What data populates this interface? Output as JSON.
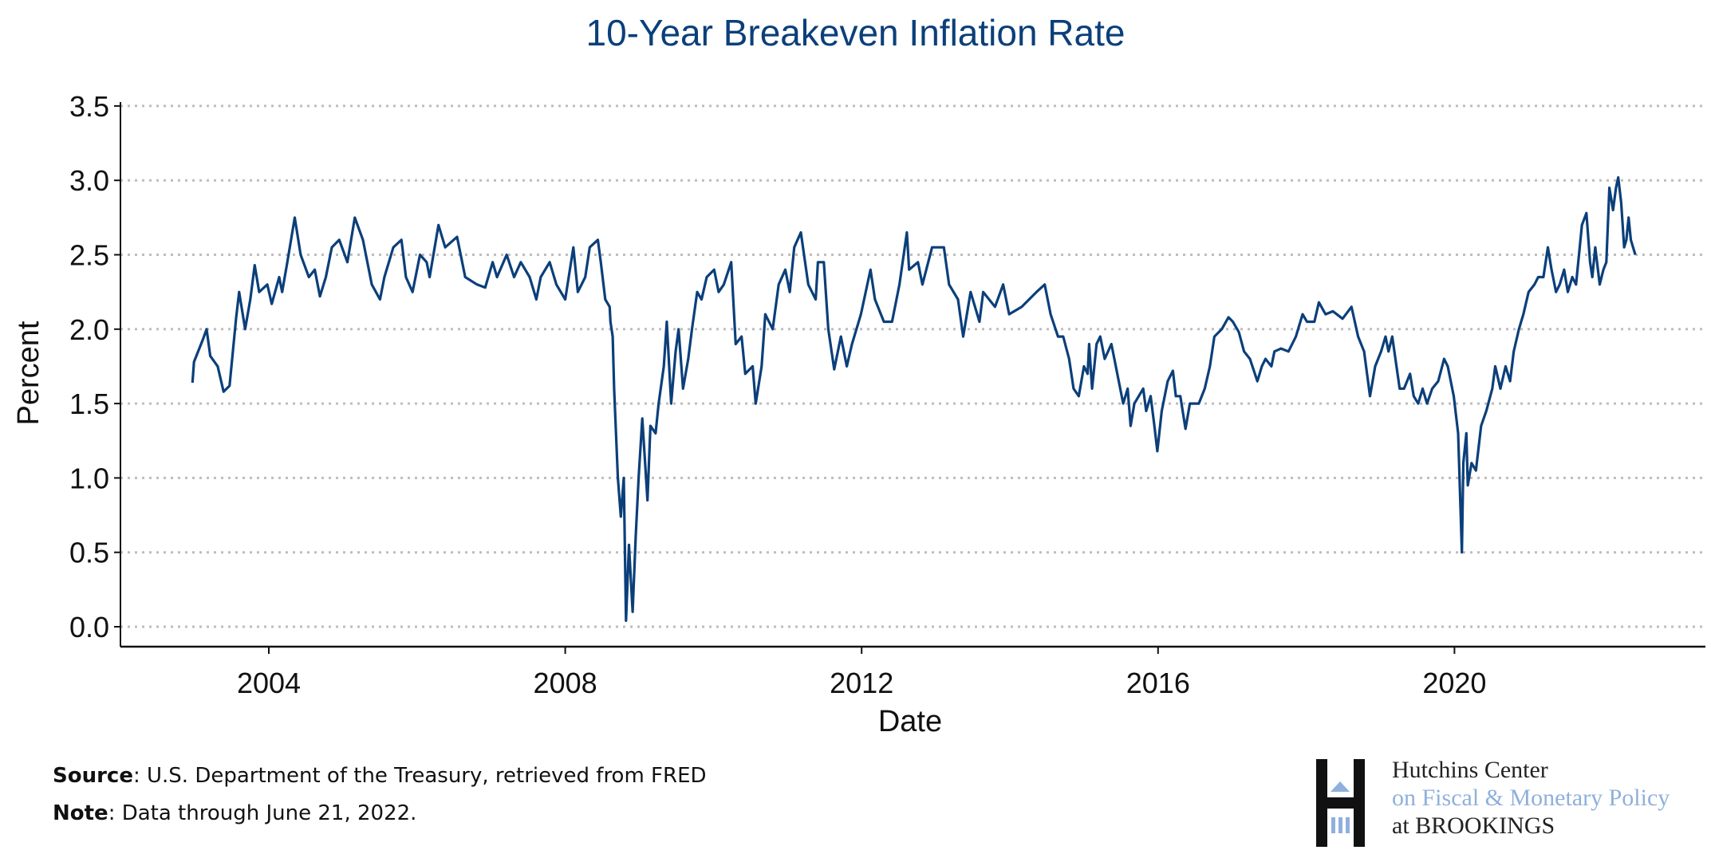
{
  "chart_data": {
    "type": "line",
    "title": "10-Year Breakeven Inflation Rate",
    "xlabel": "Date",
    "ylabel": "Percent",
    "xlim": [
      2002.0,
      2023.4
    ],
    "ylim": [
      -0.1,
      3.55
    ],
    "xticks": [
      2004,
      2008,
      2012,
      2016,
      2020
    ],
    "yticks": [
      "0.0",
      "0.5",
      "1.0",
      "1.5",
      "2.0",
      "2.5",
      "3.0",
      "3.5"
    ],
    "grid": "horizontal dotted",
    "line_color": "#0b3f7a",
    "series": [
      {
        "name": "10-Year Breakeven Inflation Rate",
        "points": [
          [
            2002.97,
            1.64
          ],
          [
            2002.99,
            1.78
          ],
          [
            2003.11,
            1.93
          ],
          [
            2003.16,
            2.0
          ],
          [
            2003.21,
            1.82
          ],
          [
            2003.31,
            1.75
          ],
          [
            2003.39,
            1.58
          ],
          [
            2003.47,
            1.62
          ],
          [
            2003.56,
            2.08
          ],
          [
            2003.6,
            2.25
          ],
          [
            2003.68,
            2.0
          ],
          [
            2003.75,
            2.2
          ],
          [
            2003.81,
            2.43
          ],
          [
            2003.87,
            2.25
          ],
          [
            2003.98,
            2.3
          ],
          [
            2004.04,
            2.17
          ],
          [
            2004.14,
            2.35
          ],
          [
            2004.18,
            2.25
          ],
          [
            2004.25,
            2.45
          ],
          [
            2004.35,
            2.75
          ],
          [
            2004.43,
            2.5
          ],
          [
            2004.54,
            2.35
          ],
          [
            2004.62,
            2.4
          ],
          [
            2004.69,
            2.22
          ],
          [
            2004.77,
            2.35
          ],
          [
            2004.85,
            2.55
          ],
          [
            2004.95,
            2.6
          ],
          [
            2005.06,
            2.45
          ],
          [
            2005.16,
            2.75
          ],
          [
            2005.27,
            2.6
          ],
          [
            2005.39,
            2.3
          ],
          [
            2005.5,
            2.2
          ],
          [
            2005.56,
            2.35
          ],
          [
            2005.68,
            2.55
          ],
          [
            2005.79,
            2.6
          ],
          [
            2005.85,
            2.35
          ],
          [
            2005.94,
            2.25
          ],
          [
            2006.04,
            2.5
          ],
          [
            2006.13,
            2.45
          ],
          [
            2006.17,
            2.35
          ],
          [
            2006.29,
            2.7
          ],
          [
            2006.38,
            2.55
          ],
          [
            2006.54,
            2.62
          ],
          [
            2006.65,
            2.35
          ],
          [
            2006.81,
            2.3
          ],
          [
            2006.92,
            2.28
          ],
          [
            2007.02,
            2.45
          ],
          [
            2007.08,
            2.35
          ],
          [
            2007.21,
            2.5
          ],
          [
            2007.31,
            2.35
          ],
          [
            2007.4,
            2.45
          ],
          [
            2007.52,
            2.35
          ],
          [
            2007.61,
            2.2
          ],
          [
            2007.67,
            2.35
          ],
          [
            2007.79,
            2.45
          ],
          [
            2007.88,
            2.3
          ],
          [
            2008.0,
            2.2
          ],
          [
            2008.11,
            2.55
          ],
          [
            2008.17,
            2.25
          ],
          [
            2008.27,
            2.35
          ],
          [
            2008.33,
            2.55
          ],
          [
            2008.44,
            2.6
          ],
          [
            2008.48,
            2.45
          ],
          [
            2008.54,
            2.2
          ],
          [
            2008.6,
            2.15
          ],
          [
            2008.61,
            2.05
          ],
          [
            2008.64,
            1.95
          ],
          [
            2008.66,
            1.6
          ],
          [
            2008.71,
            1.0
          ],
          [
            2008.75,
            0.74
          ],
          [
            2008.79,
            1.0
          ],
          [
            2008.82,
            0.04
          ],
          [
            2008.86,
            0.55
          ],
          [
            2008.91,
            0.1
          ],
          [
            2008.95,
            0.6
          ],
          [
            2008.99,
            1.0
          ],
          [
            2009.04,
            1.4
          ],
          [
            2009.11,
            0.85
          ],
          [
            2009.15,
            1.35
          ],
          [
            2009.22,
            1.3
          ],
          [
            2009.26,
            1.5
          ],
          [
            2009.33,
            1.75
          ],
          [
            2009.37,
            2.05
          ],
          [
            2009.43,
            1.5
          ],
          [
            2009.49,
            1.85
          ],
          [
            2009.53,
            2.0
          ],
          [
            2009.59,
            1.6
          ],
          [
            2009.66,
            1.8
          ],
          [
            2009.71,
            2.0
          ],
          [
            2009.78,
            2.25
          ],
          [
            2009.84,
            2.2
          ],
          [
            2009.91,
            2.35
          ],
          [
            2010.01,
            2.4
          ],
          [
            2010.07,
            2.25
          ],
          [
            2010.14,
            2.3
          ],
          [
            2010.24,
            2.45
          ],
          [
            2010.3,
            1.9
          ],
          [
            2010.38,
            1.95
          ],
          [
            2010.43,
            1.7
          ],
          [
            2010.53,
            1.75
          ],
          [
            2010.57,
            1.5
          ],
          [
            2010.65,
            1.75
          ],
          [
            2010.7,
            2.1
          ],
          [
            2010.8,
            2.0
          ],
          [
            2010.88,
            2.3
          ],
          [
            2010.97,
            2.4
          ],
          [
            2011.03,
            2.25
          ],
          [
            2011.09,
            2.55
          ],
          [
            2011.18,
            2.65
          ],
          [
            2011.28,
            2.3
          ],
          [
            2011.38,
            2.2
          ],
          [
            2011.41,
            2.45
          ],
          [
            2011.49,
            2.45
          ],
          [
            2011.55,
            2.0
          ],
          [
            2011.63,
            1.73
          ],
          [
            2011.72,
            1.95
          ],
          [
            2011.8,
            1.75
          ],
          [
            2011.87,
            1.9
          ],
          [
            2011.99,
            2.1
          ],
          [
            2012.12,
            2.4
          ],
          [
            2012.18,
            2.2
          ],
          [
            2012.3,
            2.05
          ],
          [
            2012.41,
            2.05
          ],
          [
            2012.51,
            2.3
          ],
          [
            2012.61,
            2.65
          ],
          [
            2012.64,
            2.4
          ],
          [
            2012.76,
            2.45
          ],
          [
            2012.82,
            2.3
          ],
          [
            2012.95,
            2.55
          ],
          [
            2013.11,
            2.55
          ],
          [
            2013.18,
            2.3
          ],
          [
            2013.3,
            2.2
          ],
          [
            2013.37,
            1.95
          ],
          [
            2013.47,
            2.25
          ],
          [
            2013.59,
            2.05
          ],
          [
            2013.64,
            2.25
          ],
          [
            2013.8,
            2.15
          ],
          [
            2013.91,
            2.3
          ],
          [
            2013.99,
            2.1
          ],
          [
            2014.16,
            2.15
          ],
          [
            2014.36,
            2.25
          ],
          [
            2014.47,
            2.3
          ],
          [
            2014.55,
            2.1
          ],
          [
            2014.65,
            1.95
          ],
          [
            2014.72,
            1.95
          ],
          [
            2014.8,
            1.8
          ],
          [
            2014.86,
            1.6
          ],
          [
            2014.93,
            1.55
          ],
          [
            2015.0,
            1.75
          ],
          [
            2015.05,
            1.7
          ],
          [
            2015.07,
            1.9
          ],
          [
            2015.11,
            1.6
          ],
          [
            2015.17,
            1.9
          ],
          [
            2015.22,
            1.95
          ],
          [
            2015.28,
            1.8
          ],
          [
            2015.37,
            1.9
          ],
          [
            2015.45,
            1.7
          ],
          [
            2015.53,
            1.5
          ],
          [
            2015.59,
            1.6
          ],
          [
            2015.63,
            1.35
          ],
          [
            2015.68,
            1.5
          ],
          [
            2015.8,
            1.6
          ],
          [
            2015.84,
            1.45
          ],
          [
            2015.9,
            1.55
          ],
          [
            2015.95,
            1.35
          ],
          [
            2015.99,
            1.18
          ],
          [
            2016.05,
            1.45
          ],
          [
            2016.13,
            1.65
          ],
          [
            2016.2,
            1.72
          ],
          [
            2016.24,
            1.55
          ],
          [
            2016.3,
            1.55
          ],
          [
            2016.37,
            1.33
          ],
          [
            2016.43,
            1.5
          ],
          [
            2016.55,
            1.5
          ],
          [
            2016.63,
            1.6
          ],
          [
            2016.7,
            1.75
          ],
          [
            2016.76,
            1.95
          ],
          [
            2016.86,
            2.0
          ],
          [
            2016.95,
            2.08
          ],
          [
            2017.01,
            2.05
          ],
          [
            2017.09,
            1.98
          ],
          [
            2017.16,
            1.85
          ],
          [
            2017.24,
            1.8
          ],
          [
            2017.34,
            1.65
          ],
          [
            2017.4,
            1.75
          ],
          [
            2017.45,
            1.8
          ],
          [
            2017.53,
            1.75
          ],
          [
            2017.57,
            1.85
          ],
          [
            2017.66,
            1.87
          ],
          [
            2017.76,
            1.85
          ],
          [
            2017.86,
            1.95
          ],
          [
            2017.95,
            2.1
          ],
          [
            2018.01,
            2.05
          ],
          [
            2018.11,
            2.05
          ],
          [
            2018.17,
            2.18
          ],
          [
            2018.26,
            2.1
          ],
          [
            2018.36,
            2.12
          ],
          [
            2018.49,
            2.07
          ],
          [
            2018.61,
            2.15
          ],
          [
            2018.7,
            1.95
          ],
          [
            2018.78,
            1.85
          ],
          [
            2018.86,
            1.55
          ],
          [
            2018.93,
            1.75
          ],
          [
            2019.01,
            1.85
          ],
          [
            2019.07,
            1.95
          ],
          [
            2019.11,
            1.85
          ],
          [
            2019.16,
            1.95
          ],
          [
            2019.26,
            1.6
          ],
          [
            2019.32,
            1.6
          ],
          [
            2019.4,
            1.7
          ],
          [
            2019.45,
            1.55
          ],
          [
            2019.51,
            1.5
          ],
          [
            2019.57,
            1.6
          ],
          [
            2019.63,
            1.5
          ],
          [
            2019.7,
            1.6
          ],
          [
            2019.78,
            1.65
          ],
          [
            2019.86,
            1.8
          ],
          [
            2019.91,
            1.75
          ],
          [
            2019.99,
            1.55
          ],
          [
            2020.05,
            1.3
          ],
          [
            2020.1,
            0.5
          ],
          [
            2020.12,
            1.1
          ],
          [
            2020.16,
            1.3
          ],
          [
            2020.18,
            0.95
          ],
          [
            2020.23,
            1.1
          ],
          [
            2020.29,
            1.05
          ],
          [
            2020.36,
            1.35
          ],
          [
            2020.43,
            1.45
          ],
          [
            2020.51,
            1.6
          ],
          [
            2020.55,
            1.75
          ],
          [
            2020.62,
            1.6
          ],
          [
            2020.69,
            1.75
          ],
          [
            2020.75,
            1.65
          ],
          [
            2020.8,
            1.85
          ],
          [
            2020.87,
            2.0
          ],
          [
            2020.93,
            2.1
          ],
          [
            2021.0,
            2.25
          ],
          [
            2021.08,
            2.3
          ],
          [
            2021.13,
            2.35
          ],
          [
            2021.2,
            2.35
          ],
          [
            2021.26,
            2.55
          ],
          [
            2021.31,
            2.4
          ],
          [
            2021.37,
            2.25
          ],
          [
            2021.42,
            2.3
          ],
          [
            2021.48,
            2.4
          ],
          [
            2021.53,
            2.25
          ],
          [
            2021.59,
            2.35
          ],
          [
            2021.64,
            2.3
          ],
          [
            2021.72,
            2.7
          ],
          [
            2021.78,
            2.78
          ],
          [
            2021.83,
            2.45
          ],
          [
            2021.86,
            2.35
          ],
          [
            2021.9,
            2.55
          ],
          [
            2021.96,
            2.3
          ],
          [
            2022.01,
            2.4
          ],
          [
            2022.05,
            2.45
          ],
          [
            2022.09,
            2.95
          ],
          [
            2022.14,
            2.8
          ],
          [
            2022.18,
            2.95
          ],
          [
            2022.21,
            3.02
          ],
          [
            2022.25,
            2.85
          ],
          [
            2022.29,
            2.55
          ],
          [
            2022.32,
            2.6
          ],
          [
            2022.35,
            2.75
          ],
          [
            2022.38,
            2.6
          ],
          [
            2022.44,
            2.5
          ]
        ]
      }
    ]
  },
  "footer": {
    "source_label": "Source",
    "source_text": ": U.S. Department of the Treasury, retrieved from FRED",
    "note_label": "Note",
    "note_text": ": Data through June 21, 2022."
  },
  "logo": {
    "line1": "Hutchins Center",
    "line2": "on Fiscal & Monetary Policy",
    "line3": "at BROOKINGS",
    "accent": "#8fb0dc"
  }
}
